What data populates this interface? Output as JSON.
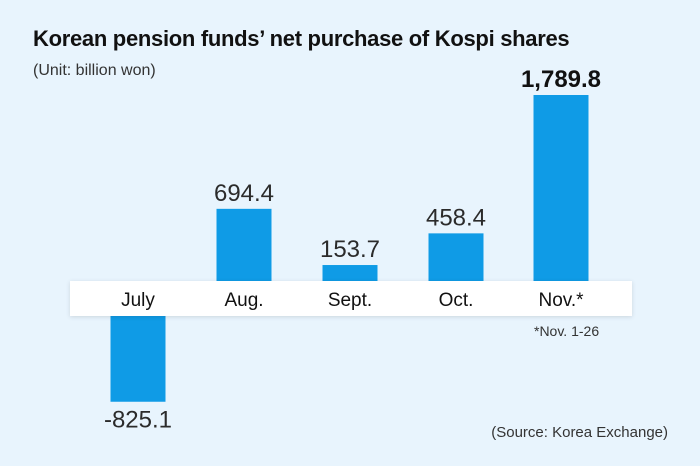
{
  "header": {
    "title": "Korean pension funds’ net purchase of Kospi shares",
    "unit": "(Unit: billion won)"
  },
  "footer": {
    "source": "(Source: Korea Exchange)",
    "footnote": "*Nov. 1-26"
  },
  "colors": {
    "bar": "#0f9be6",
    "background": "#e8f4fd",
    "band": "#ffffff"
  },
  "chart_data": {
    "type": "bar",
    "categories": [
      "July",
      "Aug.",
      "Sept.",
      "Oct.",
      "Nov.*"
    ],
    "values": [
      -825.1,
      694.4,
      153.7,
      458.4,
      1789.8
    ],
    "value_labels": [
      "-825.1",
      "694.4",
      "153.7",
      "458.4",
      "1,789.8"
    ],
    "title": "Korean pension funds’ net purchase of Kospi shares",
    "subtitle": "(Unit: billion won)",
    "xlabel": "",
    "ylabel": "",
    "grid": false,
    "legend": "none"
  }
}
